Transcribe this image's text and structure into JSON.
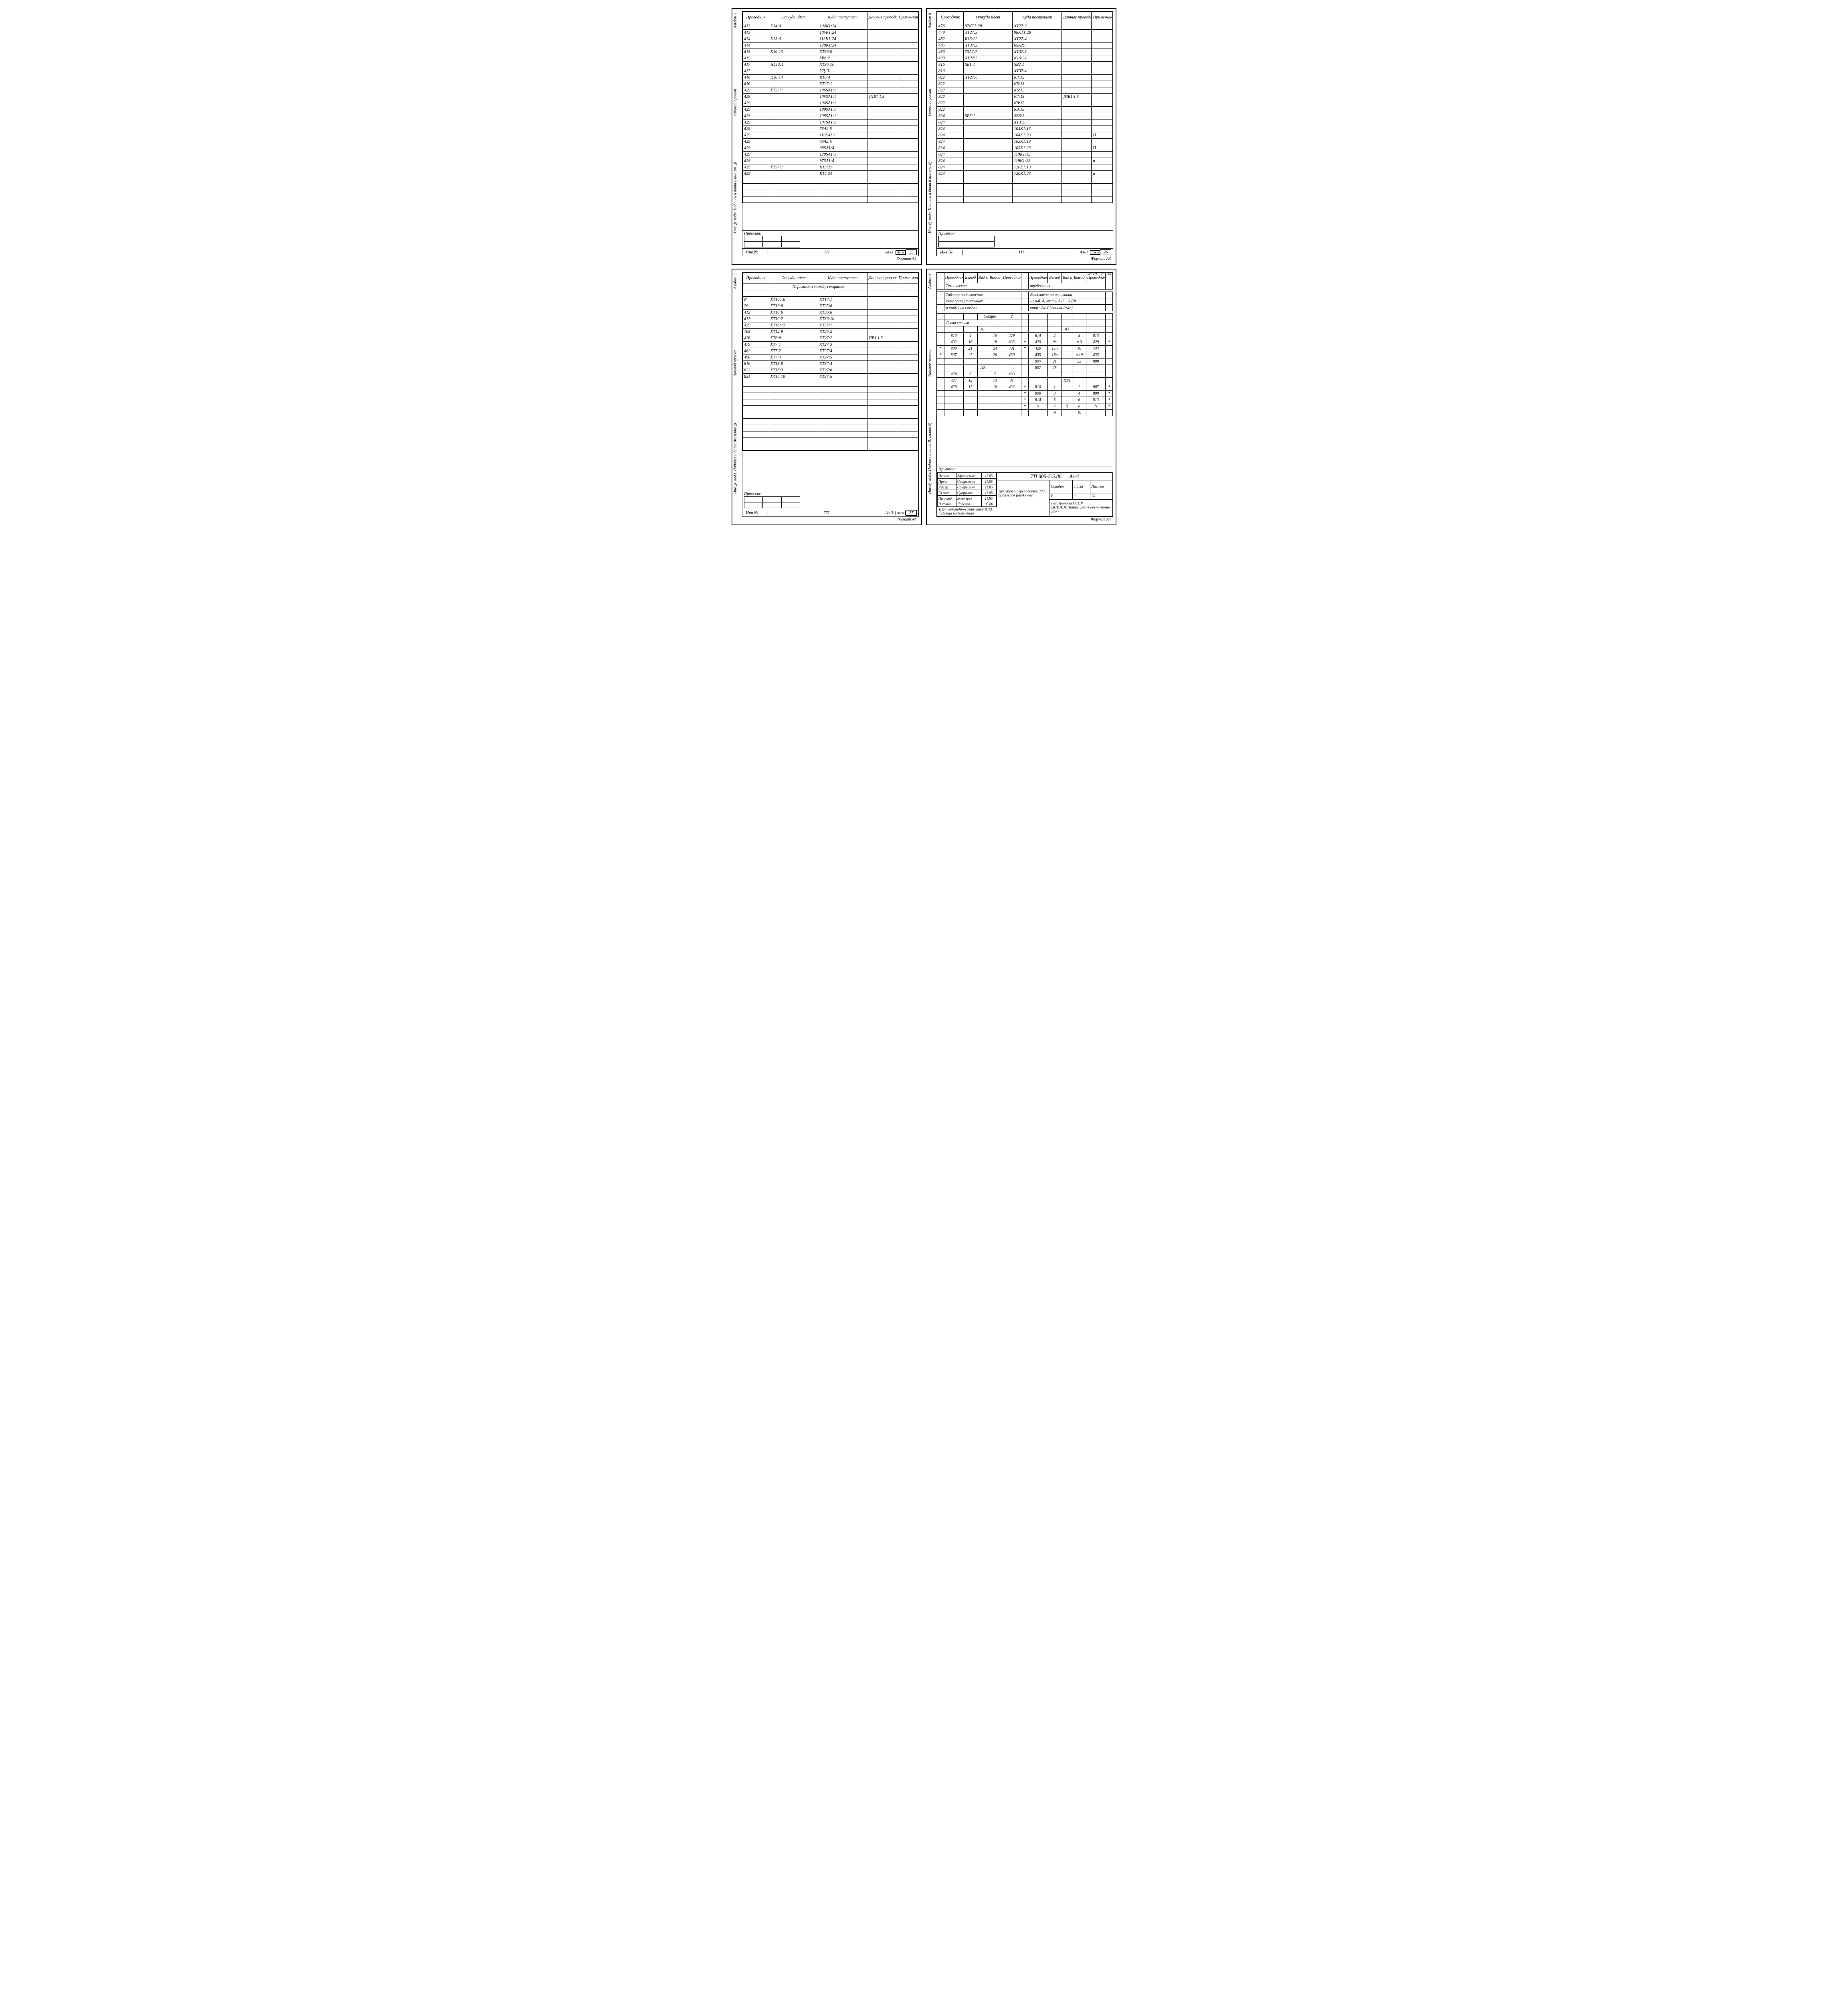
{
  "side_labels": {
    "top": "Альбом 5",
    "mid": "Типовой   проект",
    "low": "Инв.№ подл. Подпись и дата Взам.инв.№"
  },
  "headers": {
    "prov": "Проводник",
    "from": "Откуда идет",
    "to": "Куда поступает",
    "data": "Данные провода",
    "note": "Приме-чание"
  },
  "sheet25": {
    "rows": [
      {
        "p": "413",
        "f": "К14:А",
        "t": "104К1:24",
        "d": "",
        "n": ""
      },
      {
        "p": "413",
        "f": "",
        "t": "105К1:24",
        "d": "",
        "n": ""
      },
      {
        "p": "414",
        "f": "К15:А",
        "t": "119К1:24",
        "d": "",
        "n": ""
      },
      {
        "p": "414",
        "f": "",
        "t": "120К1:24",
        "d": "",
        "n": ""
      },
      {
        "p": "415",
        "f": "К16:13",
        "t": "ХТ36:9",
        "d": "",
        "n": ""
      },
      {
        "p": "415",
        "f": "",
        "t": "SB6:2",
        "d": "",
        "n": ""
      },
      {
        "p": "417",
        "f": "HL13:1",
        "t": "ХТ36:10",
        "d": "",
        "n": ""
      },
      {
        "p": "417",
        "f": "",
        "t": "УД13:–",
        "d": "",
        "n": ""
      },
      {
        "p": "416",
        "f": "К16:14",
        "t": "К16:А",
        "d": "",
        "n": "п"
      },
      {
        "p": "416",
        "f": "",
        "t": "ХТ27:1",
        "d": "",
        "n": ""
      },
      {
        "p": "429",
        "f": "ХТ37:1",
        "t": "106SA1:1",
        "d": "",
        "n": ""
      },
      {
        "p": "429",
        "f": "",
        "t": "105SA1:1",
        "d": "}ПВ1  1,5",
        "n": ""
      },
      {
        "p": "429",
        "f": "",
        "t": "104SA1:1",
        "d": "",
        "n": ""
      },
      {
        "p": "429",
        "f": "",
        "t": "109SA1:1",
        "d": "",
        "n": ""
      },
      {
        "p": "429",
        "f": "",
        "t": "108SA1:1",
        "d": "",
        "n": ""
      },
      {
        "p": "429",
        "f": "",
        "t": "107SA1:1",
        "d": "",
        "n": ""
      },
      {
        "p": "429",
        "f": "",
        "t": "7SA2:5",
        "d": "",
        "n": ""
      },
      {
        "p": "429",
        "f": "",
        "t": "119SA1:1",
        "d": "",
        "n": ""
      },
      {
        "p": "429",
        "f": "",
        "t": "6SA2:5",
        "d": "",
        "n": ""
      },
      {
        "p": "429",
        "f": "",
        "t": "98SA1:4",
        "d": "",
        "n": ""
      },
      {
        "p": "429",
        "f": "",
        "t": "120SA1:1",
        "d": "",
        "n": ""
      },
      {
        "p": "429",
        "f": "",
        "t": "97SA1:4",
        "d": "",
        "n": ""
      },
      {
        "p": "429",
        "f": "ХТ37:1",
        "t": "К13:21",
        "d": "",
        "n": ""
      },
      {
        "p": "429",
        "f": "",
        "t": "К16:23",
        "d": "",
        "n": ""
      }
    ],
    "privazon": "Привязан:",
    "tp": "ТП",
    "code": "Аз-3",
    "page_label": "Лист",
    "page": "25",
    "format": "Формат А4"
  },
  "sheet26": {
    "rows": [
      {
        "p": "476",
        "f": "97КТ1:28",
        "t": "ХТ27:2",
        "d": "",
        "n": ""
      },
      {
        "p": "479",
        "f": "ХТ27:3",
        "t": "98КТ1:28",
        "d": "",
        "n": ""
      },
      {
        "p": "482",
        "f": "К13:22",
        "t": "ХТ27:4",
        "d": "",
        "n": ""
      },
      {
        "p": "485",
        "f": "ХТ37:2",
        "t": "6SA2:7",
        "d": "",
        "n": ""
      },
      {
        "p": "486",
        "f": "7SA2:7",
        "t": "ХТ37:3",
        "d": "",
        "n": ""
      },
      {
        "p": "490",
        "f": "ХТ27:5",
        "t": "К16:24",
        "d": "",
        "n": ""
      },
      {
        "p": "816",
        "f": "SB1:1",
        "t": "SB2:1",
        "d": "",
        "n": ""
      },
      {
        "p": "816",
        "f": "",
        "t": "ХТ37:4",
        "d": "",
        "n": ""
      },
      {
        "p": "822",
        "f": "ХТ27:6",
        "t": "К4:13",
        "d": "",
        "n": ""
      },
      {
        "p": "822",
        "f": "",
        "t": "К5:13",
        "d": "",
        "n": ""
      },
      {
        "p": "822",
        "f": "",
        "t": "К6:13",
        "d": "",
        "n": ""
      },
      {
        "p": "822",
        "f": "",
        "t": "К7:13",
        "d": "}ПВ1  1,5",
        "n": ""
      },
      {
        "p": "822",
        "f": "",
        "t": "К8:13",
        "d": "",
        "n": ""
      },
      {
        "p": "822",
        "f": "",
        "t": "К9:13",
        "d": "",
        "n": ""
      },
      {
        "p": "824",
        "f": "SB5:1",
        "t": "SB6:1",
        "d": "",
        "n": ""
      },
      {
        "p": "824",
        "f": "",
        "t": "ХТ37:5",
        "d": "",
        "n": ""
      },
      {
        "p": "824",
        "f": "",
        "t": "104К1:13",
        "d": "",
        "n": ""
      },
      {
        "p": "824",
        "f": "",
        "t": "104К1:23",
        "d": "",
        "n": "П"
      },
      {
        "p": "824",
        "f": "",
        "t": "105К1:13",
        "d": "",
        "n": ""
      },
      {
        "p": "824",
        "f": "",
        "t": "105К1:23",
        "d": "",
        "n": "П"
      },
      {
        "p": "824",
        "f": "",
        "t": "119К1:13",
        "d": "",
        "n": ""
      },
      {
        "p": "824",
        "f": "",
        "t": "119К1:23",
        "d": "",
        "n": "п"
      },
      {
        "p": "824",
        "f": "",
        "t": "120К1:13",
        "d": "",
        "n": ""
      },
      {
        "p": "824",
        "f": "",
        "t": "120К1:23",
        "d": "",
        "n": "п"
      }
    ],
    "privazon": "Привязан:",
    "tp": "ТП",
    "code": "Аз-3",
    "page_label": "Лист",
    "page": "26",
    "format": "Формат А4"
  },
  "sheet27": {
    "jumpers": "Перемычки  между  секциями",
    "rows": [
      {
        "p": "N",
        "f": "ХТ16а:6",
        "t": "ХТ17:1",
        "d": "",
        "n": ""
      },
      {
        "p": "29",
        "f": "ХТ16:8",
        "t": "ХТ25:8",
        "d": "",
        "n": ""
      },
      {
        "p": "412",
        "f": "ХТ16:6",
        "t": "ХТ36:8",
        "d": "",
        "n": ""
      },
      {
        "p": "417",
        "f": "ХТ16:7",
        "t": "ХТ36:10",
        "d": "",
        "n": ""
      },
      {
        "p": "429",
        "f": "ХТ16а:2",
        "t": "ХТ37:1",
        "d": "",
        "n": ""
      },
      {
        "p": "108",
        "f": "ХТ12:9",
        "t": "ХТ26:2",
        "d": "",
        "n": ""
      },
      {
        "p": "476",
        "f": "ХТ6:8",
        "t": "ХТ27:2",
        "d": "ПВ1  1,5",
        "n": ""
      },
      {
        "p": "479",
        "f": "ХТ7:1",
        "t": "ХТ27:3",
        "d": "",
        "n": ""
      },
      {
        "p": "482",
        "f": "ХТ7:2",
        "t": "ХТ27:4",
        "d": "",
        "n": ""
      },
      {
        "p": "490",
        "f": "ХТ7:4",
        "t": "ХТ27:5",
        "d": "",
        "n": ""
      },
      {
        "p": "816",
        "f": "ХТ15:8",
        "t": "ХТ37:4",
        "d": "",
        "n": ""
      },
      {
        "p": "822",
        "f": "ХТ16:3",
        "t": "ХТ27:6",
        "t2": "",
        "d": "",
        "n": ""
      },
      {
        "p": "824",
        "f": "ХТ16:10",
        "t": "ХТ37:5",
        "d": "",
        "n": ""
      }
    ],
    "privazon": "Привязан:",
    "tp": "ТП",
    "code": "Аз-3",
    "page_label": "Лист",
    "page": "27",
    "format": "Формат А4"
  },
  "sheet4": {
    "page_ref_left": "9714",
    "page_ref_right": "5",
    "page_ref_num": "13",
    "header": {
      "prov": "Проводник",
      "vyv": "Вывод",
      "vid": "Вид кон-такта"
    },
    "tech_req_l": "Технические",
    "tech_req_r": "требования",
    "note_rows_left": [
      "Таблица  подключения",
      "схем  принципиальных",
      "и  таблицы  соедин"
    ],
    "note_rows_right": [
      "Выполнена на основании",
      "- альб. 4, листы А-1 ÷ А-28",
      "ений - Аз-3 (листы 1÷27)"
    ],
    "section_label": "Секция",
    "section_val": "2",
    "left_wall": "Левая  стенка",
    "a1": "А1",
    "a2": "А2",
    "a3": "А3",
    "xt1": "ХТ1",
    "grid_left": [
      [
        "810",
        "4",
        "",
        "15",
        "429"
      ],
      [
        "432",
        "16",
        "",
        "18",
        "435"
      ],
      [
        "809",
        "21",
        "",
        "24",
        "431"
      ],
      [
        "807",
        "25",
        "",
        "26",
        "430"
      ],
      [
        "",
        "",
        "",
        "",
        ""
      ],
      [
        "",
        "",
        "А2",
        "",
        ""
      ],
      [
        "428",
        "6",
        "",
        "7",
        "433"
      ],
      [
        "427",
        "12",
        "",
        "13",
        "N"
      ],
      [
        "429",
        "15",
        "",
        "16",
        "432"
      ]
    ],
    "grid_left_prefix": [
      "",
      "",
      "*",
      "*",
      "",
      "",
      "",
      "",
      ""
    ],
    "grid_right": [
      [
        "814",
        "2",
        "",
        "5",
        "813",
        ""
      ],
      [
        "429",
        "8п",
        "",
        "п 9",
        "429",
        "*"
      ],
      [
        "429",
        "15п",
        "",
        "16",
        "434",
        ""
      ],
      [
        "435",
        "18п",
        "",
        "п 19",
        "435",
        ""
      ],
      [
        "809",
        "21",
        "",
        "22",
        "808",
        ""
      ],
      [
        "807",
        "25",
        "",
        "",
        "",
        ""
      ],
      [
        "",
        "",
        "",
        "",
        "",
        ""
      ],
      [
        "",
        "",
        "ХТ1",
        "",
        "",
        ""
      ],
      [
        "810",
        "1",
        "",
        "2",
        "807",
        "*"
      ],
      [
        "808",
        "3",
        "",
        "4",
        "809",
        "*"
      ],
      [
        "814",
        "5",
        "",
        "6",
        "813",
        "*"
      ],
      [
        "N",
        "7",
        "П",
        "8",
        "N",
        "*"
      ],
      [
        "",
        "9",
        "",
        "10",
        "",
        ""
      ]
    ],
    "grid_right_prefix": [
      "",
      "*",
      "*",
      "",
      "",
      "",
      "",
      "",
      "*",
      "*",
      "*",
      "*",
      ""
    ],
    "privazon": "Привязан:",
    "tp_code": "ТП 805-5-5.86",
    "az": "Аз-4",
    "title_rows": [
      [
        "Исполн",
        "Афанасьева",
        "",
        "11.85"
      ],
      [
        "Пров.",
        "Старыгина",
        "",
        "11.85"
      ],
      [
        "Рук.гр.",
        "Старыгина",
        "",
        "11.85"
      ],
      [
        "Гл.спец",
        "Супрунова",
        "",
        "11.85"
      ],
      [
        "Нач.отд",
        "Жевнеров",
        "",
        "11.85"
      ],
      [
        "Н.контр",
        "Лобская",
        "",
        "05.86"
      ]
    ],
    "desc1": "Цех убоя и переработки 3000 бройлеров (кур) в час",
    "desc2": "Щит командно-сигнальный ЩКС",
    "desc3": "Таблица  подключения",
    "stadia": "Стадия",
    "list": "Лист",
    "listov": "Листов",
    "stadia_v": "Р",
    "list_v": "1",
    "listov_v": "20",
    "org": "Госагропром СССР ЦНИИЭППтицепром в Ростове-на-Дону",
    "format": "Формат А4"
  }
}
